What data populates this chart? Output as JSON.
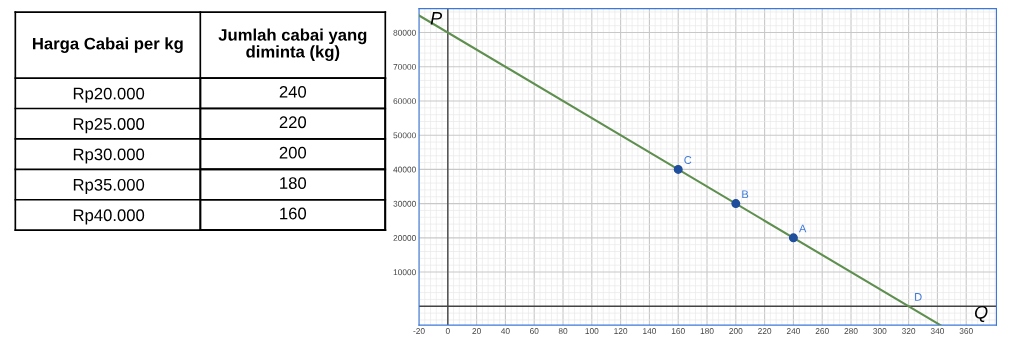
{
  "chart_data": [
    {
      "type": "heatmap",
      "ylabel": "Harga Cabai per kg",
      "categories": [
        "Jumlah cabai yang\ndiminta (kg)"
      ],
      "y_categories": [
        "Rp20.000",
        "Rp25.000",
        "Rp30.000",
        "Rp35.000",
        "Rp40.000"
      ],
      "cells": [
        [
          240
        ],
        [
          220
        ],
        [
          200
        ],
        [
          180
        ],
        [
          160
        ]
      ],
      "data_labels": true
    },
    {
      "type": "line",
      "xlabel": "Q",
      "ylabel": "P",
      "xlim": [
        -20,
        381
      ],
      "ylim": [
        -5500,
        87000
      ],
      "xticks": [
        -20,
        0,
        20,
        40,
        60,
        80,
        100,
        120,
        140,
        160,
        180,
        200,
        220,
        240,
        260,
        280,
        300,
        320,
        340,
        360
      ],
      "yticks": [
        10000,
        20000,
        30000,
        40000,
        50000,
        60000,
        70000,
        80000
      ],
      "grid": true,
      "series": [
        {
          "type": "line",
          "color": "#5e8f4f",
          "x": [
            -20,
            342
          ],
          "values": [
            85000,
            -5500
          ],
          "marker": "none"
        },
        {
          "type": "scatter",
          "color": "#1f4e9c",
          "x": [
            160,
            200,
            240
          ],
          "values": [
            40000,
            30000,
            20000
          ],
          "marker": "circle"
        }
      ],
      "annotations": [
        {
          "text": "C",
          "x": 160,
          "y": 40000
        },
        {
          "text": "B",
          "x": 200,
          "y": 30000
        },
        {
          "text": "A",
          "x": 240,
          "y": 20000
        },
        {
          "text": "D",
          "x": 320,
          "y": 0
        }
      ]
    }
  ]
}
